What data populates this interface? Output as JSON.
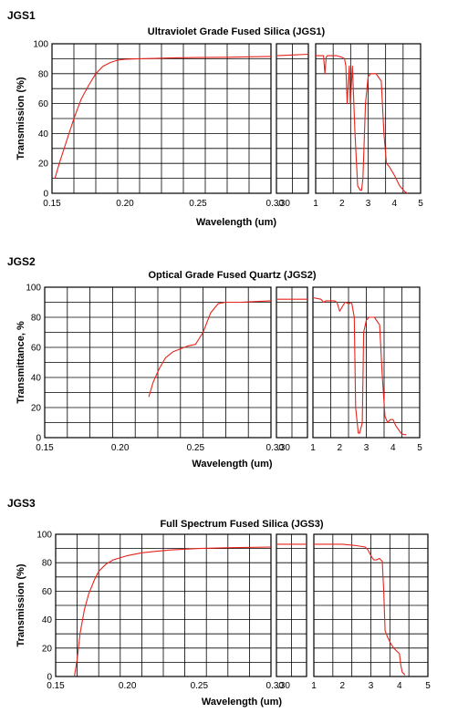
{
  "chart_data": [
    {
      "type": "line",
      "section_label": "JGS1",
      "title": "Ultraviolet Grade Fused Silica (JGS1)",
      "xlabel": "Wavelength (um)",
      "ylabel": "Transmission (%)",
      "ylim": [
        0,
        100
      ],
      "yticks": [
        "0",
        "20",
        "40",
        "60",
        "80",
        "100"
      ],
      "grid": true,
      "colors": {
        "line": "#e8231a",
        "grid": "#000000"
      },
      "panels": [
        {
          "xlim": [
            0.15,
            0.3
          ],
          "xticks": [
            "0.15",
            "0.20",
            "0.25",
            "0.30"
          ],
          "series": [
            {
              "x": [
                0.152,
                0.155,
                0.16,
                0.165,
                0.17,
                0.175,
                0.18,
                0.185,
                0.19,
                0.195,
                0.2,
                0.21,
                0.22,
                0.23,
                0.25,
                0.27,
                0.3
              ],
              "y": [
                10,
                20,
                35,
                50,
                63,
                72,
                80,
                85,
                87.5,
                89,
                89.7,
                90,
                90.2,
                90.5,
                90.8,
                91,
                91.5
              ]
            }
          ]
        },
        {
          "xlim": [
            0.3,
            0.38
          ],
          "xticks": [],
          "series": [
            {
              "x": [
                0.3,
                0.34,
                0.38
              ],
              "y": [
                92,
                92.5,
                93
              ]
            }
          ]
        },
        {
          "xlim": [
            1,
            5
          ],
          "xticks": [
            "1",
            "2",
            "3",
            "4",
            "5"
          ],
          "series": [
            {
              "x": [
                1,
                1.3,
                1.35,
                1.4,
                1.45,
                1.8,
                2.0,
                2.1,
                2.15,
                2.2,
                2.28,
                2.32,
                2.4,
                2.5,
                2.6,
                2.7,
                2.75,
                2.8,
                2.9,
                3.0,
                3.1,
                3.3,
                3.5,
                3.6,
                3.7,
                3.8,
                4.0,
                4.2,
                4.4,
                4.5
              ],
              "y": [
                92,
                92,
                80,
                91,
                92,
                92,
                91,
                90,
                85,
                60,
                85,
                60,
                85,
                40,
                5,
                2,
                2,
                10,
                60,
                78,
                80,
                80,
                75,
                40,
                20,
                18,
                12,
                5,
                1,
                0
              ]
            }
          ]
        }
      ]
    },
    {
      "type": "line",
      "section_label": "JGS2",
      "title": "Optical Grade Fused Quartz  (JGS2)",
      "xlabel": "Wavelength (um)",
      "ylabel": "Transmittance, %",
      "ylim": [
        0,
        100
      ],
      "yticks": [
        "0",
        "20",
        "40",
        "60",
        "80",
        "100"
      ],
      "grid": true,
      "colors": {
        "line": "#e8231a",
        "grid": "#000000"
      },
      "panels": [
        {
          "xlim": [
            0.15,
            0.3
          ],
          "xticks": [
            "0.15",
            "0.20",
            "0.25",
            "0.30"
          ],
          "series": [
            {
              "x": [
                0.219,
                0.222,
                0.226,
                0.23,
                0.235,
                0.24,
                0.245,
                0.25,
                0.255,
                0.26,
                0.265,
                0.27,
                0.28,
                0.29,
                0.3
              ],
              "y": [
                27,
                37,
                46,
                53,
                57,
                59,
                61,
                62,
                70,
                83,
                89,
                90,
                90,
                90.5,
                91
              ]
            }
          ]
        },
        {
          "xlim": [
            0.3,
            0.38
          ],
          "xticks": [],
          "series": [
            {
              "x": [
                0.3,
                0.34,
                0.38
              ],
              "y": [
                92,
                92,
                92
              ]
            }
          ]
        },
        {
          "xlim": [
            1,
            5
          ],
          "xticks": [
            "1",
            "2",
            "3",
            "4",
            "5"
          ],
          "series": [
            {
              "x": [
                1,
                1.3,
                1.4,
                1.5,
                1.8,
                1.9,
                2.0,
                2.1,
                2.2,
                2.35,
                2.45,
                2.55,
                2.6,
                2.7,
                2.75,
                2.85,
                2.9,
                3.0,
                3.1,
                3.3,
                3.5,
                3.6,
                3.7,
                3.8,
                3.9,
                4.0,
                4.1,
                4.3,
                4.4,
                4.5
              ],
              "y": [
                93,
                92,
                90,
                91,
                91,
                90,
                84,
                87,
                90,
                89,
                90,
                80,
                20,
                3,
                3,
                10,
                70,
                78,
                80,
                80,
                75,
                40,
                14,
                10,
                12,
                12,
                8,
                3,
                2,
                2
              ]
            }
          ]
        }
      ]
    },
    {
      "type": "line",
      "section_label": "JGS3",
      "title": "Full Spectrum Fused Silica (JGS3)",
      "xlabel": "Wavelength (um)",
      "ylabel": "Transmission (%)",
      "ylim": [
        0,
        100
      ],
      "yticks": [
        "0",
        "20",
        "40",
        "60",
        "80",
        "100"
      ],
      "grid": true,
      "colors": {
        "line": "#e8231a",
        "grid": "#000000"
      },
      "panels": [
        {
          "xlim": [
            0.15,
            0.3
          ],
          "xticks": [
            "0.15",
            "0.20",
            "0.25",
            "0.30"
          ],
          "series": [
            {
              "x": [
                0.163,
                0.165,
                0.167,
                0.17,
                0.173,
                0.177,
                0.18,
                0.185,
                0.19,
                0.2,
                0.21,
                0.22,
                0.23,
                0.25,
                0.27,
                0.3
              ],
              "y": [
                0,
                12,
                30,
                47,
                58,
                68,
                74,
                79,
                82,
                85,
                87,
                88,
                89,
                90,
                90.5,
                91
              ]
            }
          ]
        },
        {
          "xlim": [
            0.3,
            0.38
          ],
          "xticks": [],
          "series": [
            {
              "x": [
                0.3,
                0.34,
                0.38
              ],
              "y": [
                93,
                93,
                93
              ]
            }
          ]
        },
        {
          "xlim": [
            1,
            5
          ],
          "xticks": [
            "1",
            "2",
            "3",
            "4",
            "5"
          ],
          "series": [
            {
              "x": [
                1,
                2.0,
                2.5,
                2.8,
                2.9,
                3.0,
                3.1,
                3.2,
                3.3,
                3.4,
                3.45,
                3.5,
                3.6,
                3.7,
                3.8,
                3.9,
                4.0,
                4.05,
                4.1,
                4.2
              ],
              "y": [
                93,
                93,
                92,
                91,
                89,
                85,
                82,
                82,
                83,
                81,
                60,
                32,
                27,
                23,
                20,
                18,
                16,
                8,
                3,
                1
              ]
            }
          ]
        }
      ]
    }
  ]
}
